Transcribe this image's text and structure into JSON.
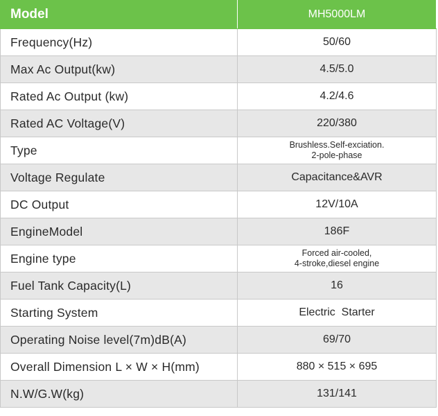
{
  "header": {
    "label": "Model",
    "value": "MH5000LM"
  },
  "rows": [
    {
      "label": "Frequency(Hz)",
      "value": "50/60"
    },
    {
      "label": "Max Ac Output(kw)",
      "value": "4.5/5.0"
    },
    {
      "label": "Rated Ac Output (kw)",
      "value": "4.2/4.6"
    },
    {
      "label": "Rated AC Voltage(V)",
      "value": "220/380"
    },
    {
      "label": "Type",
      "value_lines": [
        "Brushless.Self-exciation.",
        "2-pole-phase"
      ]
    },
    {
      "label": "Voltage Regulate",
      "value": "Capacitance&AVR"
    },
    {
      "label": "DC Output",
      "value": "12V/10A"
    },
    {
      "label": "EngineModel",
      "value": "186F"
    },
    {
      "label": "Engine type",
      "value_lines": [
        "Forced air-cooled,",
        "4-stroke,diesel engine"
      ]
    },
    {
      "label": "Fuel Tank Capacity(L)",
      "value": "16"
    },
    {
      "label": "Starting System",
      "value": "Electric  Starter"
    },
    {
      "label": "Operating Noise level(7m)dB(A)",
      "value": "69/70"
    },
    {
      "label": "Overall Dimension L × W × H(mm)",
      "value": "880 × 515 × 695"
    },
    {
      "label": "N.W/G.W(kg)",
      "value": "131/141"
    }
  ],
  "colors": {
    "header_bg": "#6cc24a",
    "row_alt_bg": "#e7e7e7",
    "border": "#c8c8c8"
  }
}
